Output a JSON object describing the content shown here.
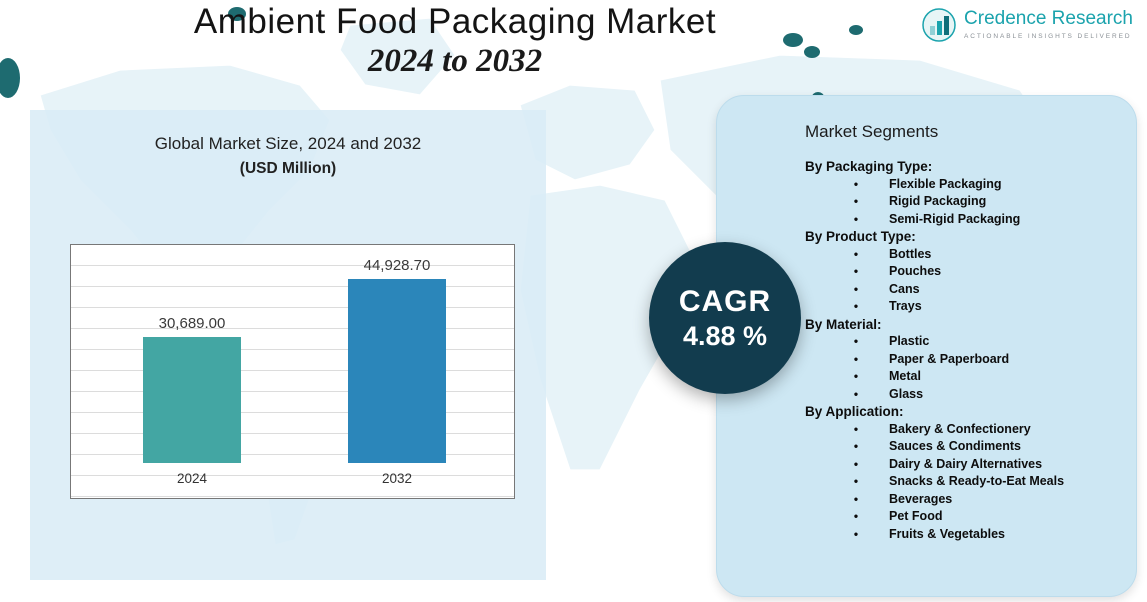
{
  "header": {
    "title": "Ambient Food Packaging Market",
    "subtitle": "2024 to 2032"
  },
  "logo": {
    "name": "Credence Research",
    "tagline": "Actionable Insights Delivered"
  },
  "left_panel": {
    "title_line1": "Global Market Size, 2024 and 2032",
    "title_line2": "(USD Million)"
  },
  "chart_data": {
    "type": "bar",
    "title": "Global Market Size, 2024 and 2032 (USD Million)",
    "categories": [
      "2024",
      "2032"
    ],
    "values": [
      30689.0,
      44928.7
    ],
    "value_labels": [
      "30,689.00",
      "44,928.70"
    ],
    "colors": [
      "#43a6a3",
      "#2b86ba"
    ],
    "xlabel": "",
    "ylabel": "",
    "ylim": [
      0,
      50000
    ],
    "grid": true,
    "legend": false
  },
  "cagr": {
    "label": "CAGR",
    "value": "4.88 %"
  },
  "segments": {
    "title": "Market Segments",
    "groups": [
      {
        "label": "By Packaging Type:",
        "items": [
          "Flexible Packaging",
          "Rigid Packaging",
          "Semi-Rigid Packaging"
        ]
      },
      {
        "label": "By Product Type:",
        "items": [
          "Bottles",
          "Pouches",
          "Cans",
          "Trays"
        ]
      },
      {
        "label": "By Material:",
        "items": [
          "Plastic",
          "Paper & Paperboard",
          "Metal",
          "Glass"
        ]
      },
      {
        "label": "By Application:",
        "items": [
          "Bakery & Confectionery",
          "Sauces & Condiments",
          "Dairy & Dairy Alternatives",
          "Snacks & Ready-to-Eat Meals",
          "Beverages",
          "Pet Food",
          "Fruits & Vegetables"
        ]
      }
    ]
  },
  "colors": {
    "bar_2024": "#43a6a3",
    "bar_2032": "#2b86ba",
    "cagr_bg": "#123c4e",
    "panel_left": "#d9ecf6",
    "panel_right": "#cde7f3",
    "logo_teal": "#1ba3ad"
  }
}
